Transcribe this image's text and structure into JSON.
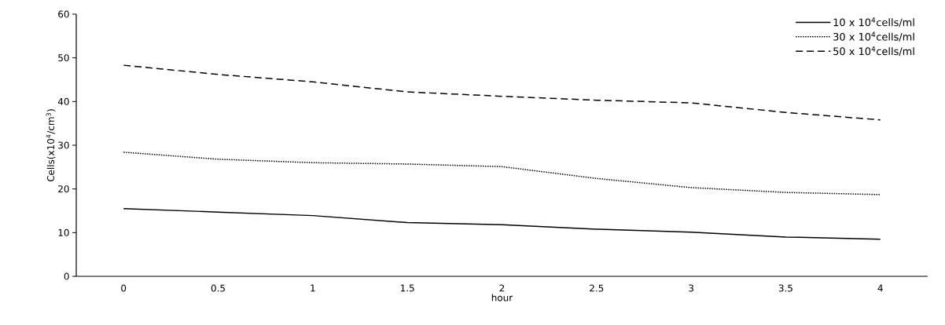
{
  "chart_data": {
    "type": "line",
    "xlabel": "hour",
    "ylabel": "Cells(x10$^{4}$/cm$^{3}$)",
    "categories": [
      "0",
      "0.5",
      "1",
      "1.5",
      "2",
      "2.5",
      "3",
      "3.5",
      "4"
    ],
    "ylim": [
      0,
      60
    ],
    "yticks": [
      0,
      10,
      20,
      30,
      40,
      50,
      60
    ],
    "grid": false,
    "legend": "top right",
    "marker": "none",
    "series": [
      {
        "name": "10 x 10$^{4}$cells/ml",
        "color": "#000000",
        "line_style": "solid",
        "values": [
          15.5,
          14.7,
          13.9,
          12.3,
          11.8,
          10.8,
          10.1,
          9.0,
          8.5
        ]
      },
      {
        "name": "30 x 10$^{4}$cells/ml",
        "color": "#000000",
        "line_style": "dotted",
        "values": [
          28.4,
          26.8,
          26.0,
          25.7,
          25.1,
          22.4,
          20.3,
          19.2,
          18.7
        ]
      },
      {
        "name": "50 x 10$^{4}$cells/ml",
        "color": "#000000",
        "line_style": "dashed",
        "values": [
          48.3,
          46.2,
          44.5,
          42.2,
          41.2,
          40.3,
          39.7,
          37.5,
          35.8
        ]
      }
    ]
  }
}
